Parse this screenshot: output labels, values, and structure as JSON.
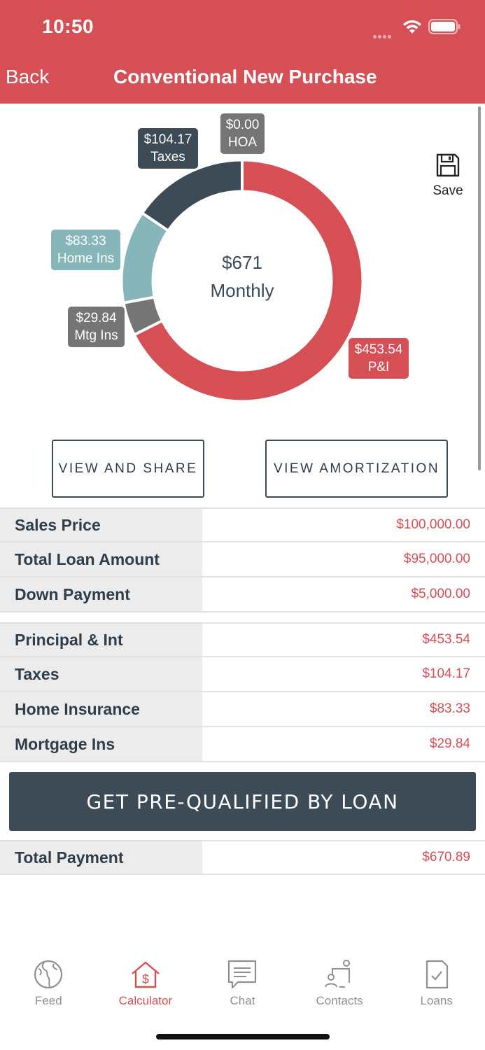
{
  "status_bar": {
    "time": "10:50"
  },
  "nav": {
    "back_label": "Back",
    "title": "Conventional New Purchase"
  },
  "chart_data": {
    "type": "pie",
    "center_value": "$671",
    "center_label": "Monthly",
    "total": 670.89,
    "slices": [
      {
        "name": "P&I",
        "value": 453.54,
        "amount_label": "$453.54",
        "color": "#d64f55"
      },
      {
        "name": "Mtg Ins",
        "value": 29.84,
        "amount_label": "$29.84",
        "color": "#757575"
      },
      {
        "name": "Home Ins",
        "value": 83.33,
        "amount_label": "$83.33",
        "color": "#86b6b9"
      },
      {
        "name": "Taxes",
        "value": 104.17,
        "amount_label": "$104.17",
        "color": "#3c4b56"
      },
      {
        "name": "HOA",
        "value": 0.0,
        "amount_label": "$0.00",
        "color": "#757575"
      }
    ]
  },
  "save": {
    "label": "Save"
  },
  "buttons": {
    "view_share": "VIEW AND SHARE",
    "view_amortization": "VIEW AMORTIZATION"
  },
  "loan_summary": [
    {
      "label": "Sales Price",
      "value": "$100,000.00"
    },
    {
      "label": "Total Loan Amount",
      "value": "$95,000.00"
    },
    {
      "label": "Down Payment",
      "value": "$5,000.00"
    }
  ],
  "payment_breakdown": [
    {
      "label": "Principal & Int",
      "value": "$453.54"
    },
    {
      "label": "Taxes",
      "value": "$104.17"
    },
    {
      "label": "Home Insurance",
      "value": "$83.33"
    },
    {
      "label": "Mortgage Ins",
      "value": "$29.84"
    }
  ],
  "cta": {
    "label": "GET PRE-QUALIFIED BY LOAN"
  },
  "total": {
    "label": "Total Payment",
    "value": "$670.89"
  },
  "tabbar": {
    "items": [
      {
        "label": "Feed",
        "icon": "globe-icon"
      },
      {
        "label": "Calculator",
        "icon": "house-dollar-icon",
        "active": true
      },
      {
        "label": "Chat",
        "icon": "chat-icon"
      },
      {
        "label": "Contacts",
        "icon": "contacts-icon"
      },
      {
        "label": "Loans",
        "icon": "document-check-icon"
      }
    ]
  },
  "colors": {
    "brand": "#d64f55",
    "dark": "#3c4b56",
    "teal": "#86b6b9",
    "grey": "#757575"
  }
}
